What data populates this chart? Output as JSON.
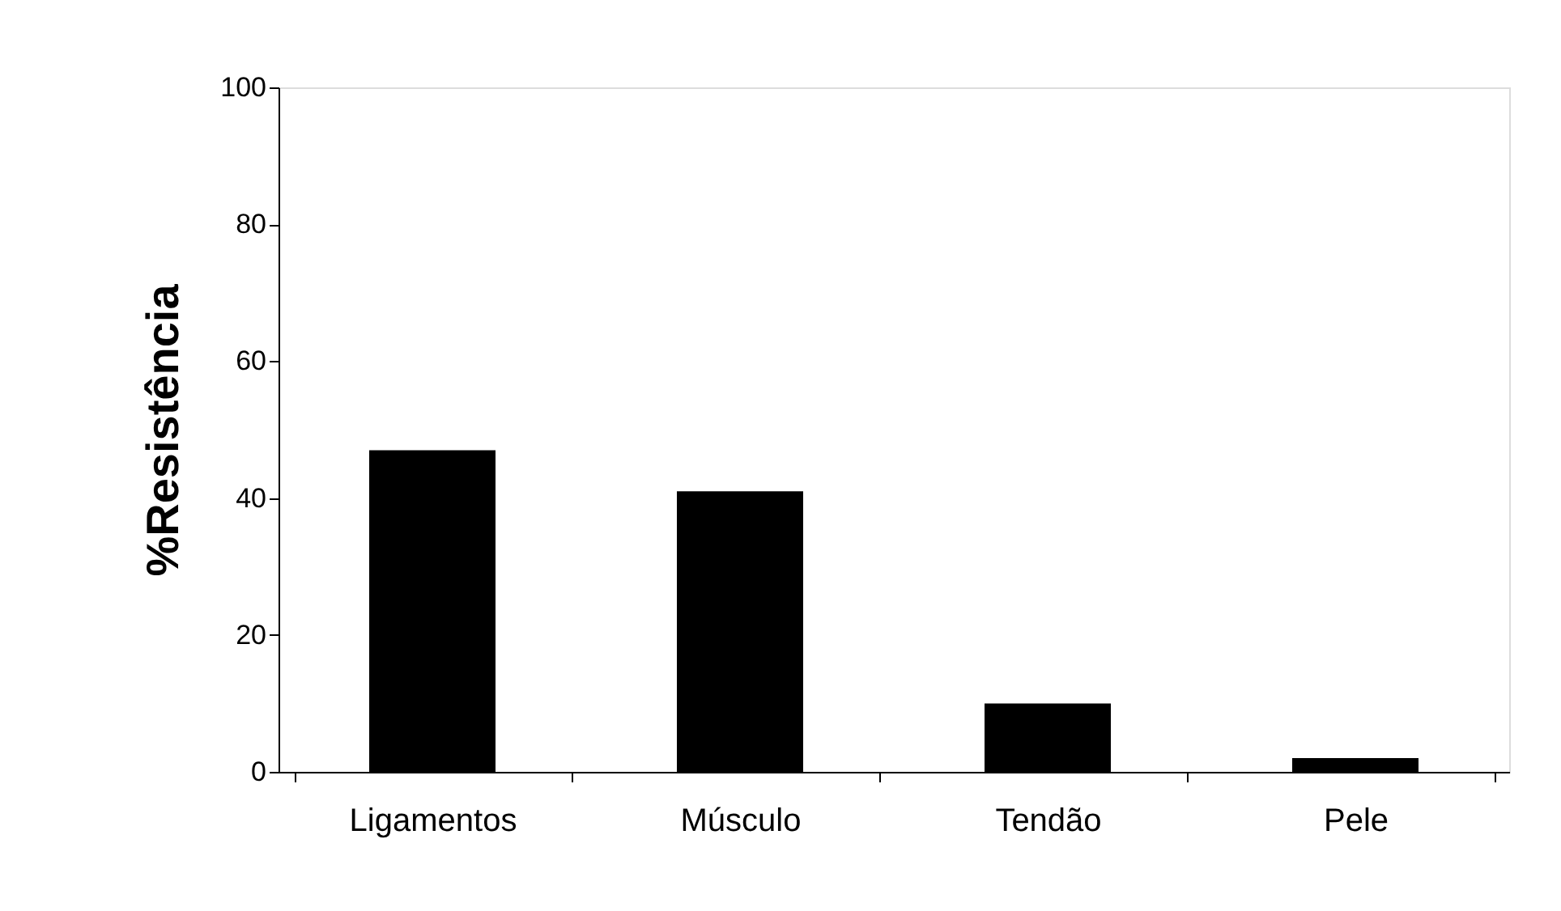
{
  "chart_data": {
    "type": "bar",
    "ylabel": "%Resistência",
    "categories": [
      "Ligamentos",
      "Músculo",
      "Tendão",
      "Pele"
    ],
    "values": [
      47,
      41,
      10,
      2
    ],
    "color": "#000000",
    "ylim": [
      0,
      100
    ],
    "yticks": [
      0,
      20,
      40,
      60,
      80,
      100
    ],
    "grid": false
  }
}
